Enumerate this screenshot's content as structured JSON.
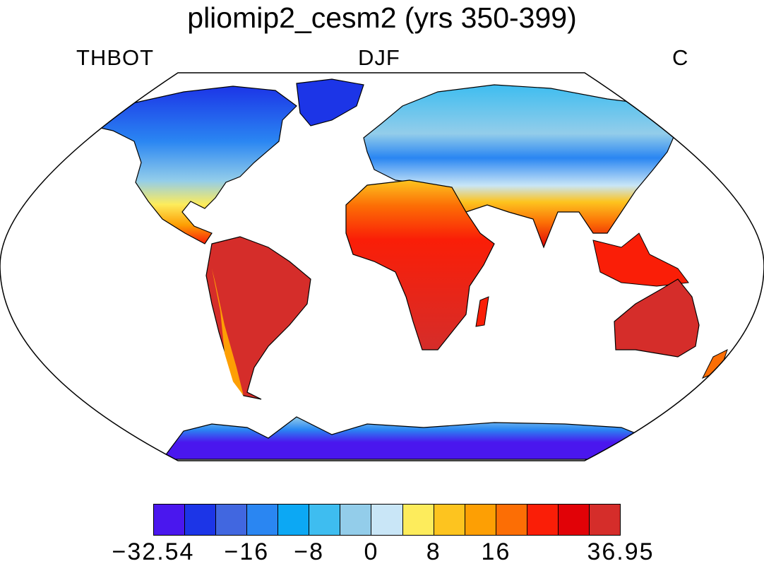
{
  "title": "pliomip2_cesm2 (yrs 350-399)",
  "subtitle_left": "THBOT",
  "subtitle_center": "DJF",
  "subtitle_right": "C",
  "colorbar": {
    "colors": [
      "#4a17ee",
      "#1c35e7",
      "#4167e0",
      "#2a86f2",
      "#0ca8f4",
      "#3ebdf0",
      "#93cdea",
      "#c9e6f7",
      "#fdec5c",
      "#fdc41f",
      "#fd9f04",
      "#fc6e05",
      "#fa1e07",
      "#e10207",
      "#d52d2a"
    ],
    "labels": [
      {
        "text": "−32.54",
        "edge": 0
      },
      {
        "text": "−16",
        "edge": 3
      },
      {
        "text": "−8",
        "edge": 5
      },
      {
        "text": "0",
        "edge": 7
      },
      {
        "text": "8",
        "edge": 9
      },
      {
        "text": "16",
        "edge": 11
      },
      {
        "text": "36.95",
        "edge": 15
      }
    ]
  }
}
